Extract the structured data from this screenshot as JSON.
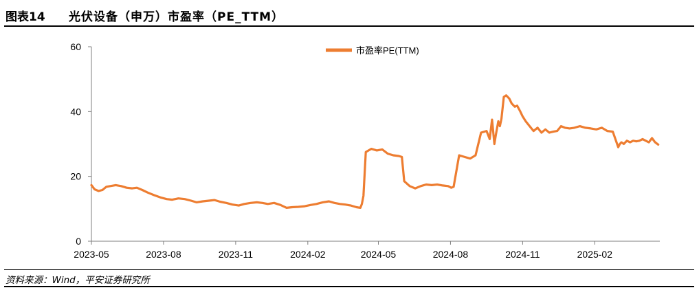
{
  "header": {
    "figure_label": "图表14",
    "title": "光伏设备（申万）市盈率（PE_TTM）"
  },
  "footer": {
    "source": "资料来源：Wind，平安证券研究所"
  },
  "colors": {
    "series": "#ED7D31",
    "axis": "#7F7F7F"
  },
  "chart_data": {
    "type": "line",
    "title": "",
    "xlabel": "",
    "ylabel": "",
    "ylim": [
      0,
      60
    ],
    "yticks": [
      "0",
      "20",
      "40",
      "60"
    ],
    "xticks": [
      "2023-05",
      "2023-08",
      "2023-11",
      "2024-02",
      "2024-05",
      "2024-08",
      "2024-11",
      "2025-02"
    ],
    "xlim": [
      "2023-05-01",
      "2025-04-25"
    ],
    "grid": false,
    "legend": "top-center",
    "series": [
      {
        "name": "市盈率PE(TTM)",
        "x": [
          "2023-05-01",
          "2023-05-05",
          "2023-05-10",
          "2023-05-15",
          "2023-05-20",
          "2023-05-25",
          "2023-06-01",
          "2023-06-08",
          "2023-06-15",
          "2023-06-22",
          "2023-06-28",
          "2023-07-05",
          "2023-07-12",
          "2023-07-20",
          "2023-07-28",
          "2023-08-05",
          "2023-08-12",
          "2023-08-20",
          "2023-08-28",
          "2023-09-05",
          "2023-09-12",
          "2023-09-20",
          "2023-09-28",
          "2023-10-05",
          "2023-10-12",
          "2023-10-20",
          "2023-10-28",
          "2023-11-05",
          "2023-11-12",
          "2023-11-20",
          "2023-11-28",
          "2023-12-05",
          "2023-12-12",
          "2023-12-20",
          "2023-12-28",
          "2024-01-05",
          "2024-01-12",
          "2024-01-20",
          "2024-01-28",
          "2024-02-05",
          "2024-02-12",
          "2024-02-20",
          "2024-02-28",
          "2024-03-06",
          "2024-03-13",
          "2024-03-20",
          "2024-03-27",
          "2024-04-03",
          "2024-04-08",
          "2024-04-10",
          "2024-04-12",
          "2024-04-15",
          "2024-04-22",
          "2024-04-29",
          "2024-05-06",
          "2024-05-13",
          "2024-05-20",
          "2024-05-27",
          "2024-05-31",
          "2024-06-03",
          "2024-06-10",
          "2024-06-17",
          "2024-06-24",
          "2024-07-01",
          "2024-07-08",
          "2024-07-15",
          "2024-07-22",
          "2024-07-29",
          "2024-08-02",
          "2024-08-05",
          "2024-08-12",
          "2024-08-19",
          "2024-08-26",
          "2024-09-02",
          "2024-09-09",
          "2024-09-16",
          "2024-09-20",
          "2024-09-23",
          "2024-09-26",
          "2024-09-28",
          "2024-10-01",
          "2024-10-03",
          "2024-10-05",
          "2024-10-08",
          "2024-10-11",
          "2024-10-15",
          "2024-10-18",
          "2024-10-22",
          "2024-10-25",
          "2024-10-29",
          "2024-11-01",
          "2024-11-05",
          "2024-11-10",
          "2024-11-15",
          "2024-11-20",
          "2024-11-25",
          "2024-11-30",
          "2024-12-05",
          "2024-12-10",
          "2024-12-15",
          "2024-12-20",
          "2024-12-25",
          "2024-12-31",
          "2025-01-06",
          "2025-01-13",
          "2025-01-20",
          "2025-01-27",
          "2025-02-03",
          "2025-02-10",
          "2025-02-17",
          "2025-02-24",
          "2025-03-03",
          "2025-03-05",
          "2025-03-07",
          "2025-03-10",
          "2025-03-14",
          "2025-03-18",
          "2025-03-22",
          "2025-03-26",
          "2025-03-30",
          "2025-04-03",
          "2025-04-07",
          "2025-04-11",
          "2025-04-15",
          "2025-04-19",
          "2025-04-23"
        ],
        "values": [
          17.3,
          16.0,
          15.5,
          15.8,
          16.8,
          17.0,
          17.3,
          17.0,
          16.5,
          16.3,
          16.5,
          15.8,
          15.0,
          14.2,
          13.5,
          13.0,
          12.8,
          13.2,
          13.0,
          12.5,
          12.0,
          12.3,
          12.5,
          12.7,
          12.2,
          11.8,
          11.3,
          11.0,
          11.5,
          11.8,
          12.0,
          11.8,
          11.5,
          11.8,
          11.2,
          10.3,
          10.5,
          10.6,
          10.8,
          11.2,
          11.5,
          12.0,
          12.3,
          11.8,
          11.5,
          11.3,
          11.0,
          10.5,
          10.3,
          11.5,
          14.0,
          27.5,
          28.5,
          28.0,
          28.3,
          27.0,
          26.5,
          26.3,
          26.0,
          18.5,
          17.0,
          16.3,
          17.0,
          17.5,
          17.3,
          17.5,
          17.2,
          17.0,
          16.5,
          16.8,
          26.5,
          26.0,
          25.5,
          26.5,
          33.5,
          34.0,
          31.5,
          37.5,
          30.0,
          33.0,
          37.0,
          35.5,
          37.8,
          44.5,
          45.0,
          44.0,
          42.5,
          41.5,
          41.8,
          40.0,
          38.5,
          37.0,
          35.5,
          34.0,
          35.0,
          33.5,
          34.5,
          33.5,
          33.8,
          34.0,
          35.5,
          35.0,
          34.8,
          35.0,
          35.5,
          35.0,
          34.8,
          34.5,
          35.0,
          34.0,
          33.8,
          29.0,
          30.0,
          30.5,
          30.0,
          31.0,
          30.5,
          31.0,
          30.8,
          31.0,
          31.5,
          31.0,
          30.5,
          31.8,
          30.5,
          29.8
        ]
      }
    ]
  }
}
